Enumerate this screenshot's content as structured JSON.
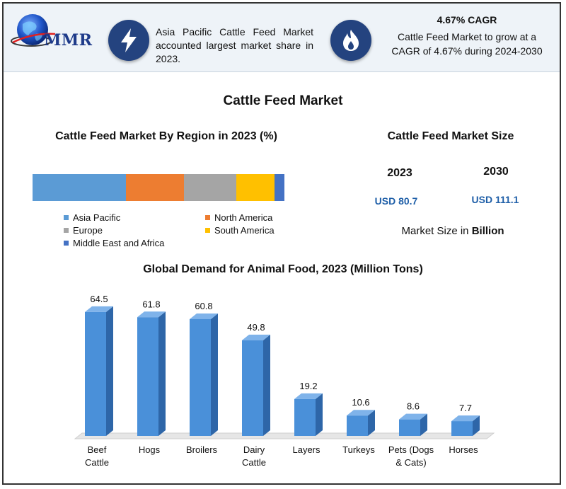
{
  "header": {
    "logo_text": "MMR",
    "info1_text": "Asia Pacific Cattle Feed Market accounted largest market share in 2023.",
    "info2_title": "4.67% CAGR",
    "info2_text": "Cattle Feed Market to grow at a CAGR of 4.67% during 2024-2030",
    "info1_icon": "lightning-icon",
    "info2_icon": "flame-icon",
    "icon_circle_color": "#24437f"
  },
  "main_title": "Cattle Feed Market",
  "market_size": {
    "title": "Cattle Feed Market Size",
    "years": [
      "2023",
      "2030"
    ],
    "values": [
      "USD 80.7",
      "USD 111.1"
    ],
    "note_prefix": "Market Size in ",
    "note_bold": "Billion",
    "value_color": "#1f5fa8"
  },
  "chart_data": [
    {
      "type": "bar",
      "orientation": "horizontal-stacked",
      "title": "Cattle Feed Market By Region in 2023 (%)",
      "categories": [
        "Asia Pacific",
        "North America",
        "Europe",
        "South America",
        "Middle East and Africa"
      ],
      "values": [
        37,
        23,
        21,
        15,
        4
      ],
      "colors": [
        "#5b9bd5",
        "#ed7d31",
        "#a5a5a5",
        "#ffc000",
        "#4472c4"
      ],
      "legend_placement": "bottom",
      "xlim": [
        0,
        100
      ]
    },
    {
      "type": "bar",
      "title": "Global Demand for Animal Food, 2023  (Million Tons)",
      "categories": [
        "Beef Cattle",
        "Hogs",
        "Broilers",
        "Dairy Cattle",
        "Layers",
        "Turkeys",
        "Pets (Dogs & Cats)",
        "Horses"
      ],
      "category_lines": [
        [
          "Beef",
          "Cattle"
        ],
        [
          "Hogs"
        ],
        [
          "Broilers"
        ],
        [
          "Dairy",
          "Cattle"
        ],
        [
          "Layers"
        ],
        [
          "Turkeys"
        ],
        [
          "Pets (Dogs",
          "& Cats)"
        ],
        [
          "Horses"
        ]
      ],
      "values": [
        64.5,
        61.8,
        60.8,
        49.8,
        19.2,
        10.6,
        8.6,
        7.7
      ],
      "data_labels": [
        "64.5",
        "61.8",
        "60.8",
        "49.8",
        "19.2",
        "10.6",
        "8.6",
        "7.7"
      ],
      "bar_color": "#4a90d9",
      "ylim": [
        0,
        70
      ],
      "grid": false
    }
  ]
}
